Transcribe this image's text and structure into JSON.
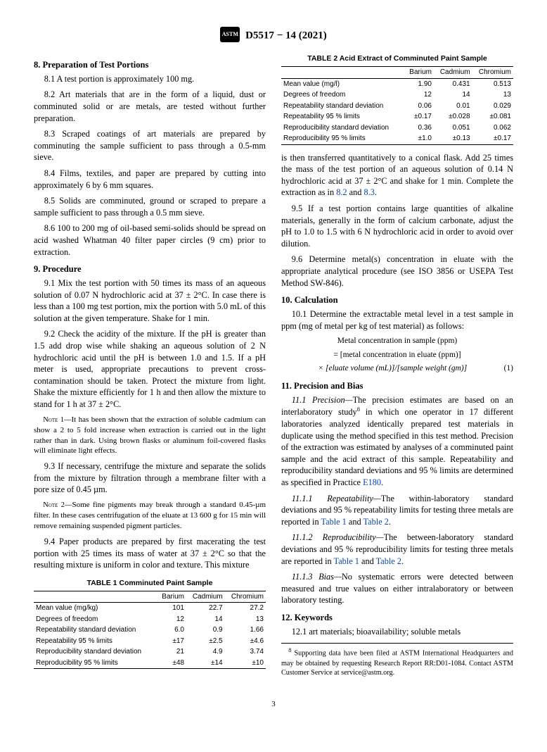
{
  "header": {
    "docnum": "D5517 − 14 (2021)"
  },
  "s8": {
    "title": "8.  Preparation of Test Portions",
    "p1": "8.1  A test portion is approximately 100 mg.",
    "p2": "8.2  Art materials that are in the form of a liquid, dust or comminuted solid or are metals, are tested without further preparation.",
    "p3": "8.3  Scraped coatings of art materials are prepared by comminuting the sample sufficient to pass through a 0.5-mm sieve.",
    "p4": "8.4  Films, textiles, and paper are prepared by cutting into approximately 6 by 6 mm squares.",
    "p5": "8.5  Solids are comminuted, ground or scraped to prepare a sample sufficient to pass through a 0.5 mm sieve.",
    "p6": "8.6  100 to 200 mg of oil-based semi-solids should be spread on acid washed Whatman 40 filter paper circles (9 cm) prior to extraction."
  },
  "s9": {
    "title": "9.  Procedure",
    "p1": "9.1  Mix the test portion with 50 times its mass of an aqueous solution of 0.07 N hydrochloric acid at 37 ± 2°C. In case there is less than a 100 mg test portion, mix the portion with 5.0 mL of this solution at the given temperature. Shake for 1 min.",
    "p2": "9.2  Check the acidity of the mixture. If the pH is greater than 1.5 add drop wise while shaking an aqueous solution of  2 N hydrochloric acid until the pH is between 1.0 and 1.5. If a pH meter is used, appropriate precautions to prevent cross-contamination should be taken. Protect the mixture from light. Shake the mixture efficiently for 1 h and then allow the mixture to stand for 1 h at 37 ± 2°C.",
    "note1": "It has been shown that the extraction of soluble cadmium can show a 2 to 5 fold increase when extraction is carried out in the light rather than in dark. Using brown flasks or aluminum foil-covered flasks will eliminate light effects.",
    "p3": "9.3  If necessary, centrifuge the mixture and separate the solids from the mixture by filtration through a membrane filter with a pore size of 0.45 µm.",
    "note2": "Some fine pigments may break through a standard 0.45-µm filter. In these cases centrifugation of the eluate at 13 600 g for 15 min will remove remaining suspended pigment particles.",
    "p4": "9.4  Paper products are prepared by first macerating the test portion with 25 times its mass of water at 37 ± 2°C so that the resulting mixture is uniform in color and texture. This mixture",
    "p4b_a": "is then transferred quantitatively to a conical flask. Add 25 times the mass of the test portion of an aqueous solution of 0.14 N hydrochloric acid at 37 ± 2°C and shake for 1 min. Complete the extraction as in ",
    "p4b_link1": "8.2",
    "p4b_mid": " and ",
    "p4b_link2": "8.3",
    "p4b_end": ".",
    "p5": "9.5  If a test portion contains large quantities of alkaline materials, generally in the form of calcium carbonate, adjust the pH to 1.0 to 1.5 with 6 N hydrochloric acid in order to avoid over dilution.",
    "p6": "9.6  Determine metal(s) concentration in eluate with the appropriate analytical procedure (see ISO 3856 or USEPA Test Method SW-846)."
  },
  "s10": {
    "title": "10.  Calculation",
    "p1": "10.1  Determine the extractable metal level in a test sample in ppm (mg of metal per kg of test material) as follows:",
    "eq1": "Metal concentration in sample (ppm)",
    "eq2": "= [metal concentration in eluate (ppm)]",
    "eq3": "× [eluate volume (mL)]/[sample weight (gm)]",
    "eqno": "(1)"
  },
  "s11": {
    "title": "11.  Precision and Bias",
    "p1a": "11.1  Precision—",
    "p1b": "The precision estimates are based on an interlaboratory study",
    "p1sup": "8",
    "p1c": " in which one operator in 17 different laboratories analyzed identically prepared test materials in duplicate using the method specified in this test method. Precision of the extraction was estimated by analyses of a comminuted paint sample and the acid extract of this sample. Repeatability and reproducibility standard deviations and 95 % limits are determined as specified in Practice ",
    "p1link": "E180",
    "p1d": ".",
    "p2a": "11.1.1  Repeatability—",
    "p2b": "The within-laboratory standard deviations and 95 % repeatability limits for testing three metals are reported in ",
    "p2l1": "Table 1",
    "p2mid": " and ",
    "p2l2": "Table 2",
    "p2end": ".",
    "p3a": "11.1.2  Reproducibility—",
    "p3b": "The between-laboratory standard deviations and 95 % reproducibility limits for testing three metals are reported in ",
    "p3l1": "Table 1",
    "p3mid": " and ",
    "p3l2": "Table 2",
    "p3end": ".",
    "p4a": "11.1.3  Bias—",
    "p4b": "No systematic errors were detected between measured and true values on either intralaboratory or between laboratory testing."
  },
  "s12": {
    "title": "12.  Keywords",
    "p1": "12.1  art materials; bioavailability; soluble metals"
  },
  "footnote": {
    "sup": "8",
    "text": " Supporting data have been filed at ASTM International Headquarters and may be obtained by requesting Research Report RR:D01-1084. Contact ASTM Customer Service at service@astm.org."
  },
  "table1": {
    "title": "TABLE 1 Comminuted Paint Sample",
    "cols": [
      "",
      "Barium",
      "Cadmium",
      "Chromium"
    ],
    "rows": [
      [
        "Mean value (mg/kg)",
        "101",
        "22.7",
        "27.2"
      ],
      [
        "Degrees of freedom",
        "12",
        "14",
        "13"
      ],
      [
        "Repeatability standard deviation",
        "6.0",
        "0.9",
        "1.66"
      ],
      [
        "Repeatability 95 % limits",
        "±17",
        "±2.5",
        "±4.6"
      ],
      [
        "Reproducibility standard deviation",
        "21",
        "4.9",
        "3.74"
      ],
      [
        "Reproducibility 95 % limits",
        "±48",
        "±14",
        "±10"
      ]
    ]
  },
  "table2": {
    "title": "TABLE 2 Acid Extract of Comminuted Paint Sample",
    "cols": [
      "",
      "Barium",
      "Cadmium",
      "Chromium"
    ],
    "rows": [
      [
        "Mean value (mg/l)",
        "1.90",
        "0.431",
        "0.513"
      ],
      [
        "Degrees of freedom",
        "12",
        "14",
        "13"
      ],
      [
        "Repeatability standard deviation",
        "0.06",
        "0.01",
        "0.029"
      ],
      [
        "Repeatability 95 % limits",
        "±0.17",
        "±0.028",
        "±0.081"
      ],
      [
        "Reproducibility standard deviation",
        "0.36",
        "0.051",
        "0.062"
      ],
      [
        "Reproducibility 95 % limits",
        "±1.0",
        "±0.13",
        "±0.17"
      ]
    ]
  },
  "pagenum": "3"
}
